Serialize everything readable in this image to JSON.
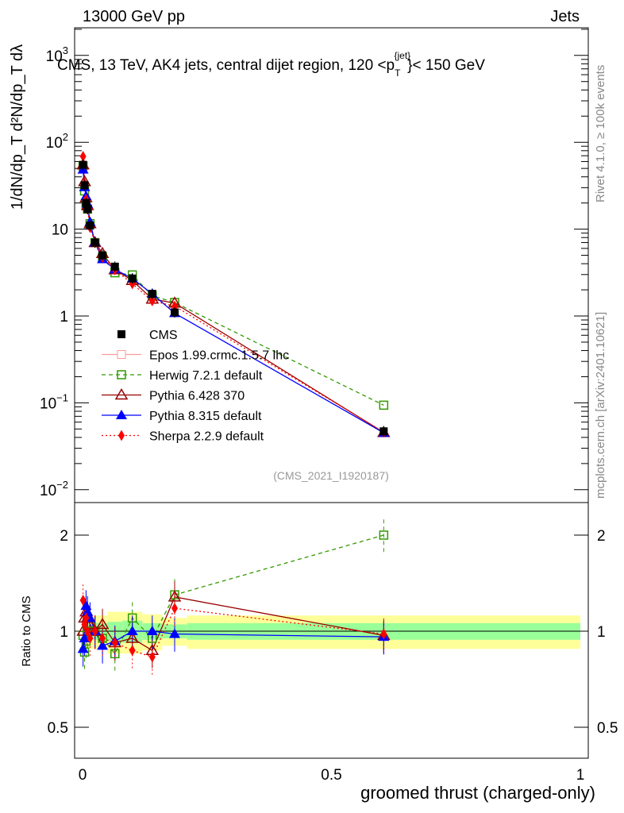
{
  "header": {
    "left": "13000 GeV pp",
    "right": "Jets"
  },
  "side_labels": {
    "rivet": "Rivet 4.1.0, ≥ 100k events",
    "mcplots": "mcplots.cern.ch [arXiv:2401.10621]"
  },
  "chart_data": [
    {
      "type": "scatter",
      "title": "CMS, 13 TeV, AK4 jets, central dijet region, 120 < p_T^{jet} < 150 GeV",
      "title_parts": {
        "main": "CMS, 13 TeV, AK4 jets, central dijet region, 120 <p",
        "sub": "T",
        "sup": "{jet}",
        "tail": "}< 150 GeV"
      },
      "ylabel": "1/dN/dp_T d²N/dp_T dλ",
      "yscale": "log",
      "ylim": [
        0.008,
        2000
      ],
      "yticks": [
        {
          "v": 0.01,
          "base": "10",
          "exp": "−2"
        },
        {
          "v": 0.1,
          "base": "10",
          "exp": "−1"
        },
        {
          "v": 1,
          "base": "1",
          "exp": ""
        },
        {
          "v": 10,
          "base": "10",
          "exp": ""
        },
        {
          "v": 100,
          "base": "10",
          "exp": "2"
        },
        {
          "v": 1000,
          "base": "10",
          "exp": "3"
        }
      ],
      "xlim": [
        -0.03,
        1.03
      ],
      "x": [
        0.001,
        0.004,
        0.007,
        0.01,
        0.015,
        0.025,
        0.04,
        0.065,
        0.1,
        0.14,
        0.185,
        0.605
      ],
      "cms": [
        55,
        32,
        20,
        17,
        11,
        7,
        5,
        3.7,
        2.7,
        1.8,
        1.1,
        0.047
      ],
      "watermark": "(CMS_2021_I1920187)",
      "legend_position": "bottom-left",
      "legend": [
        {
          "label": "CMS",
          "color": "#000000"
        },
        {
          "label": "Epos 1.99.crmc.1.5.7 lhc",
          "color": "#ff9999"
        },
        {
          "label": "Herwig 7.2.1 default",
          "color": "#339900"
        },
        {
          "label": "Pythia 6.428 370",
          "color": "#990000"
        },
        {
          "label": "Pythia 8.315 default",
          "color": "#0000ff"
        },
        {
          "label": "Sherpa 2.2.9 default",
          "color": "#ff0000"
        }
      ]
    },
    {
      "type": "scatter",
      "ylabel": "Ratio to CMS",
      "xlabel": "groomed thrust (charged-only)",
      "yscale": "log",
      "ylim": [
        0.4,
        2.5
      ],
      "yticks": [
        {
          "v": 0.5,
          "label": "0.5"
        },
        {
          "v": 1,
          "label": "1"
        },
        {
          "v": 2,
          "label": "2"
        }
      ],
      "xticks": [
        {
          "v": 0,
          "label": "0"
        },
        {
          "v": 0.5,
          "label": "0.5"
        },
        {
          "v": 1,
          "label": "1"
        }
      ],
      "band_edges": [
        0,
        0.05,
        0.08,
        0.12,
        0.16,
        0.21,
        1.0
      ],
      "band_yellow": [
        0.12,
        0.15,
        0.15,
        0.13,
        0.1,
        0.12
      ],
      "band_green": [
        0.06,
        0.07,
        0.08,
        0.06,
        0.05,
        0.06
      ],
      "series": [
        {
          "name": "Herwig 7.2.1 default",
          "key": "herwig",
          "ratio": [
            0.97,
            0.86,
            0.93,
            1.0,
            1.05,
            1.0,
            0.95,
            0.85,
            1.1,
            0.95,
            1.3,
            2.0
          ],
          "err": 0.12
        },
        {
          "name": "Pythia 6.428 370",
          "key": "py6",
          "ratio": [
            1.0,
            1.1,
            1.15,
            1.1,
            1.05,
            1.0,
            1.05,
            0.92,
            0.95,
            0.87,
            1.28,
            0.97
          ],
          "err": 0.12
        },
        {
          "name": "Pythia 8.315 default",
          "key": "py8",
          "ratio": [
            0.88,
            0.95,
            1.2,
            1.15,
            1.1,
            1.0,
            0.9,
            0.93,
            1.0,
            1.0,
            0.98,
            0.96
          ],
          "err": 0.12
        },
        {
          "name": "Sherpa 2.2.9 default",
          "key": "sherpa",
          "ratio": [
            1.25,
            1.05,
            1.1,
            1.0,
            0.95,
            1.0,
            0.95,
            0.92,
            0.87,
            0.83,
            1.18,
            0.98
          ],
          "err": 0.12
        }
      ]
    }
  ]
}
